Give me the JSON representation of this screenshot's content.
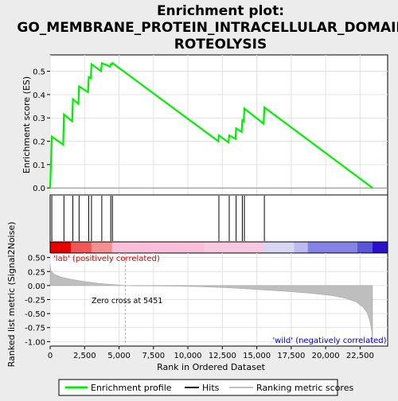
{
  "chart_data": {
    "type": "line",
    "title_lines": [
      "Enrichment plot:",
      "GO_MEMBRANE_PROTEIN_INTRACELLULAR_DOMAIN_P",
      "ROTEOLYSIS"
    ],
    "x_axis": {
      "label": "Rank in Ordered Dataset",
      "range": [
        0,
        24500
      ],
      "ticks": [
        0,
        2500,
        5000,
        7500,
        10000,
        12500,
        15000,
        17500,
        20000,
        22500
      ],
      "tick_labels": [
        "0",
        "2,500",
        "5,000",
        "7,500",
        "10,000",
        "12,500",
        "15,000",
        "17,500",
        "20,000",
        "22,500"
      ]
    },
    "es_panel": {
      "ylabel": "Enrichment score (ES)",
      "ylim": [
        -0.03,
        0.57
      ],
      "ticks": [
        0.0,
        0.1,
        0.2,
        0.3,
        0.4,
        0.5
      ],
      "tick_labels": [
        "0.0",
        "0.1",
        "0.2",
        "0.3",
        "0.4",
        "0.5"
      ],
      "grid": true,
      "series": {
        "name": "Enrichment profile",
        "color": "#00ee00",
        "x": [
          0,
          120,
          950,
          1000,
          1600,
          1650,
          2050,
          2100,
          2750,
          2800,
          2950,
          3000,
          3700,
          3750,
          4350,
          4400,
          4480,
          4520,
          12200,
          12250,
          12950,
          13000,
          13450,
          13500,
          13900,
          13950,
          14050,
          14100,
          15500,
          15550,
          23400
        ],
        "y": [
          0.0,
          0.22,
          0.185,
          0.315,
          0.285,
          0.38,
          0.36,
          0.435,
          0.41,
          0.475,
          0.47,
          0.53,
          0.5,
          0.535,
          0.52,
          0.53,
          0.528,
          0.535,
          0.2,
          0.225,
          0.195,
          0.225,
          0.21,
          0.255,
          0.24,
          0.29,
          0.285,
          0.34,
          0.275,
          0.345,
          0.0
        ]
      }
    },
    "hits": {
      "name": "Hits",
      "color": "#000000",
      "positions": [
        120,
        1000,
        1650,
        2100,
        2800,
        3000,
        3750,
        4400,
        4520,
        12250,
        13000,
        13500,
        13950,
        14100,
        15550
      ]
    },
    "heatmap_bar": {
      "colors": [
        "#e60000",
        "#f05858",
        "#f69090",
        "#fbbedb",
        "#f9c8e3",
        "#d8d6f4",
        "#bcbaf0",
        "#8583e6",
        "#5a56dc",
        "#2b10cc"
      ],
      "stops": [
        0,
        1500,
        3000,
        4500,
        11200,
        15500,
        17700,
        18700,
        22300,
        23400
      ]
    },
    "metric_panel": {
      "ylabel": "Ranked list metric (Signal2Noise)",
      "ylim": [
        -1.08,
        0.58
      ],
      "ticks": [
        0.5,
        0.25,
        0.0,
        -0.25,
        -0.5,
        -0.75,
        -1.0
      ],
      "tick_labels": [
        "0.50",
        "0.25",
        "0.00",
        "-0.25",
        "-0.50",
        "-0.75",
        "-1.00"
      ],
      "series": {
        "name": "Ranking metric scores",
        "color": "#bebebe",
        "x": [
          0,
          50,
          300,
          800,
          1500,
          2500,
          3500,
          4500,
          5451,
          6000,
          9000,
          11000,
          13000,
          15000,
          17000,
          19000,
          20500,
          21500,
          22200,
          22700,
          23000,
          23200,
          23350,
          23400
        ],
        "y": [
          0.38,
          0.27,
          0.2,
          0.15,
          0.11,
          0.07,
          0.04,
          0.02,
          0.0,
          -0.005,
          -0.01,
          -0.02,
          -0.04,
          -0.07,
          -0.1,
          -0.14,
          -0.18,
          -0.23,
          -0.29,
          -0.38,
          -0.48,
          -0.62,
          -0.82,
          -1.05
        ]
      },
      "zero_cross": 5451,
      "annotations": {
        "pos": "'lab' (positively correlated)",
        "neg": "'wild' (negatively correlated)",
        "zero_cross": "Zero cross at 5451"
      }
    },
    "legend": {
      "placement": "bottom",
      "entries": [
        "Enrichment profile",
        "Hits",
        "Ranking metric scores"
      ]
    }
  }
}
